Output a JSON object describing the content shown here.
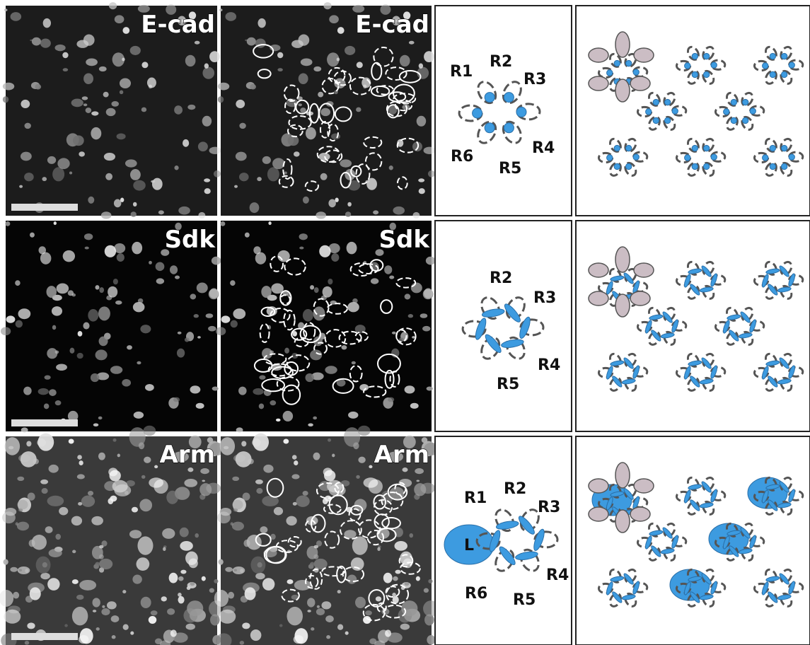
{
  "rows": [
    {
      "image_labels": [
        "E-cad",
        "E-cad"
      ],
      "diagram_labels": [
        "R1",
        "R2",
        "R3",
        "R4",
        "R5",
        "R6"
      ]
    },
    {
      "image_labels": [
        "Sdk",
        "Sdk"
      ],
      "diagram_labels": [
        "R2",
        "R3",
        "R4",
        "R5"
      ]
    },
    {
      "image_labels": [
        "Arm",
        "Arm"
      ],
      "diagram_labels": [
        "R1",
        "R2",
        "R3",
        "R4",
        "R5",
        "R6",
        "L"
      ]
    }
  ]
}
